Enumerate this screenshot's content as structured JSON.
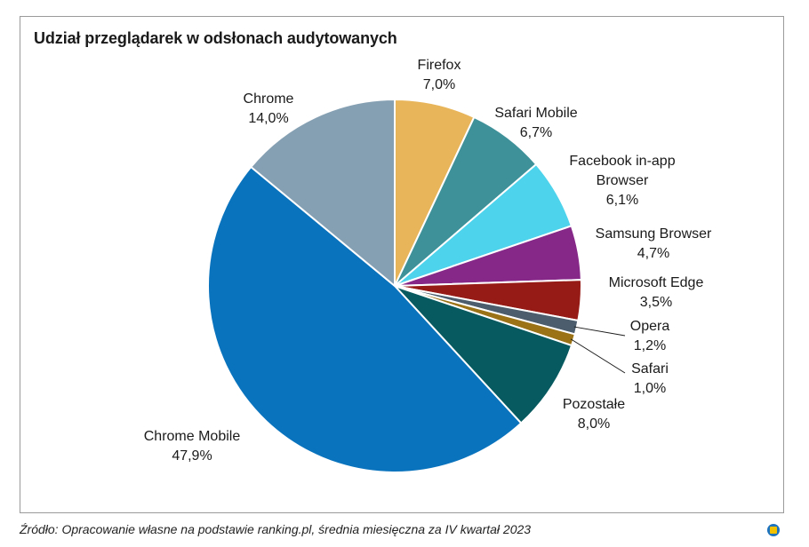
{
  "chart_data": {
    "type": "pie",
    "title": "Udział przeglądarek w odsłonach audytowanych",
    "slices": [
      {
        "name": "Firefox",
        "value": 7.0,
        "label_value": "7,0%",
        "color": "#E8B55A"
      },
      {
        "name": "Safari Mobile",
        "value": 6.7,
        "label_value": "6,7%",
        "color": "#3F9199"
      },
      {
        "name": "Facebook in-app Browser",
        "label_lines": [
          "Facebook in-app",
          "Browser"
        ],
        "value": 6.1,
        "label_value": "6,1%",
        "color": "#4DD3EC"
      },
      {
        "name": "Samsung Browser",
        "value": 4.7,
        "label_value": "4,7%",
        "color": "#862888"
      },
      {
        "name": "Microsoft Edge",
        "value": 3.5,
        "label_value": "3,5%",
        "color": "#961B17"
      },
      {
        "name": "Opera",
        "value": 1.2,
        "label_value": "1,2%",
        "color": "#4C5E6E"
      },
      {
        "name": "Safari",
        "value": 1.0,
        "label_value": "1,0%",
        "color": "#9B7316"
      },
      {
        "name": "Pozostałe",
        "value": 8.0,
        "label_value": "8,0%",
        "color": "#075A60"
      },
      {
        "name": "Chrome Mobile",
        "value": 47.9,
        "label_value": "47,9%",
        "color": "#0A73BD"
      },
      {
        "name": "Chrome",
        "value": 14.0,
        "label_value": "14,0%",
        "color": "#86A0B3"
      }
    ]
  },
  "source_note": "Źródło: Opracowanie własne na podstawie ranking.pl, średnia miesięczna za IV kwartał 2023",
  "badge_colors": {
    "ring": "#1E73BE",
    "fill": "#F2C200"
  }
}
